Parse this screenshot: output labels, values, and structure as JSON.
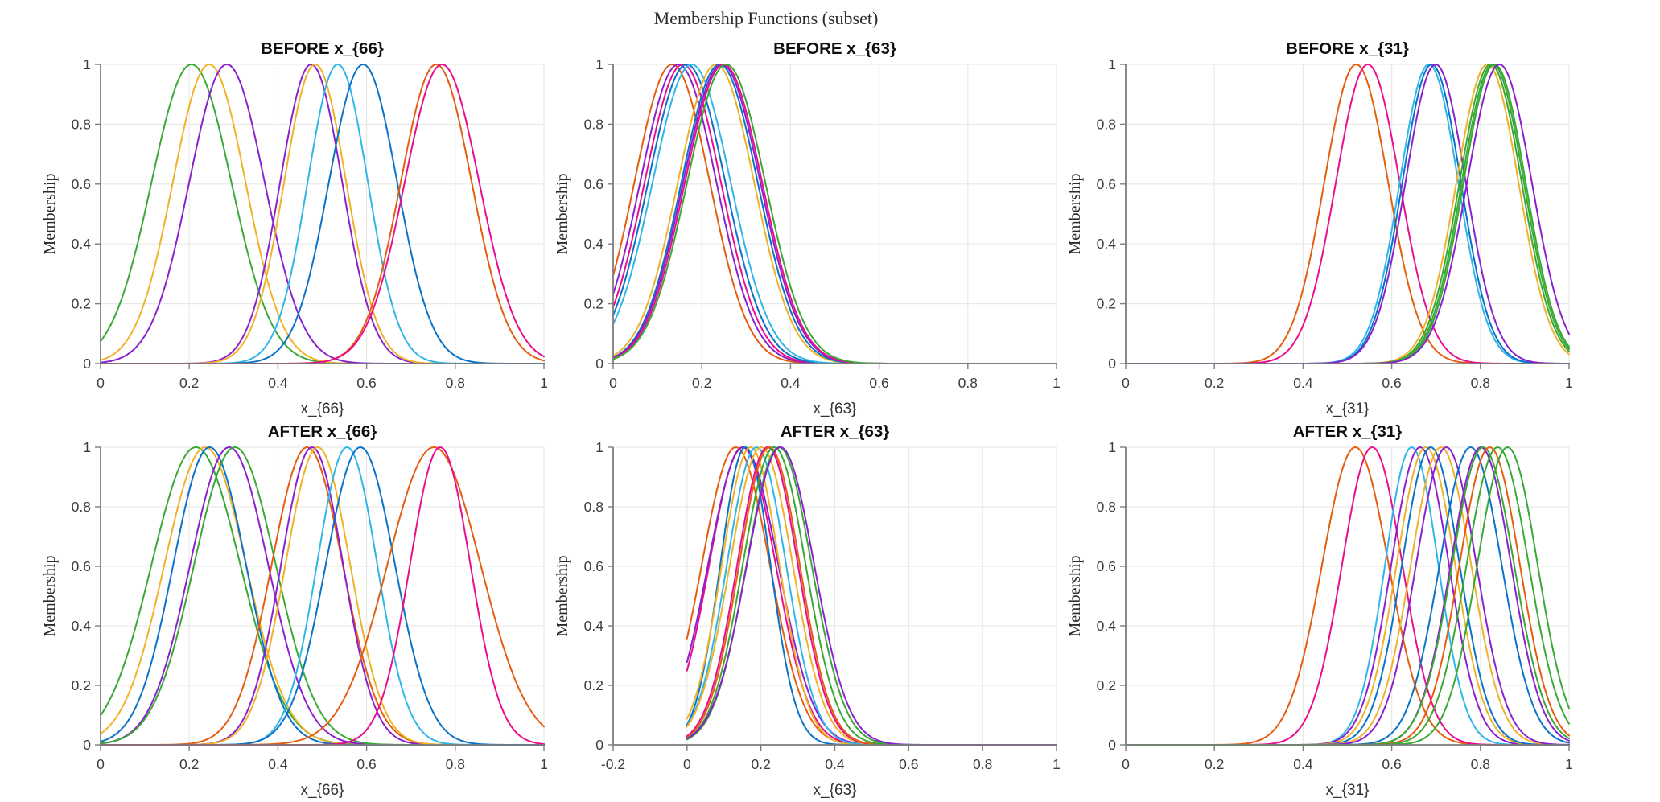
{
  "figure": {
    "suptitle": "Membership Functions (subset)",
    "background_color": "#ffffff",
    "axis_color": "#7d7d7d",
    "grid_color": "#e9e9e9",
    "tick_label_color": "#3d3d3d",
    "title_color": "#0f0f0f",
    "label_color": "#333333"
  },
  "palette": {
    "green": "#39A835",
    "amber": "#F0B228",
    "purple": "#8A21CE",
    "cyan": "#2FB6E9",
    "blue": "#0A72C8",
    "orangered": "#E55D0F",
    "magenta": "#EA0E8C"
  },
  "chart_data": [
    {
      "id": "before-x66",
      "type": "line",
      "title": "BEFORE x_{66}",
      "xlabel": "x_{66}",
      "ylabel": "Membership",
      "xlim": [
        0,
        1
      ],
      "ylim": [
        0,
        1
      ],
      "xticks": [
        0,
        0.2,
        0.4,
        0.6,
        0.8,
        1
      ],
      "xtick_labels": [
        "0",
        "0.2",
        "0.4",
        "0.6",
        "0.8",
        "1"
      ],
      "yticks": [
        0,
        0.2,
        0.4,
        0.6,
        0.8,
        1
      ],
      "ytick_labels": [
        "0",
        "0.2",
        "0.4",
        "0.6",
        "0.8",
        "1"
      ],
      "grid": true,
      "curve_model": "gaussian",
      "curve_domain": [
        0,
        1
      ],
      "series": [
        {
          "color": "green",
          "center": 0.205,
          "sigma": 0.09
        },
        {
          "color": "amber",
          "center": 0.245,
          "sigma": 0.082
        },
        {
          "color": "purple",
          "center": 0.285,
          "sigma": 0.085
        },
        {
          "color": "purple",
          "center": 0.475,
          "sigma": 0.07
        },
        {
          "color": "amber",
          "center": 0.484,
          "sigma": 0.07
        },
        {
          "color": "cyan",
          "center": 0.535,
          "sigma": 0.068
        },
        {
          "color": "blue",
          "center": 0.592,
          "sigma": 0.077
        },
        {
          "color": "orangered",
          "center": 0.757,
          "sigma": 0.08
        },
        {
          "color": "magenta",
          "center": 0.77,
          "sigma": 0.084
        }
      ]
    },
    {
      "id": "before-x63",
      "type": "line",
      "title": "BEFORE x_{63}",
      "xlabel": "x_{63}",
      "ylabel": "Membership",
      "xlim": [
        0,
        1
      ],
      "ylim": [
        0,
        1
      ],
      "xticks": [
        0,
        0.2,
        0.4,
        0.6,
        0.8,
        1
      ],
      "xtick_labels": [
        "0",
        "0.2",
        "0.4",
        "0.6",
        "0.8",
        "1"
      ],
      "yticks": [
        0,
        0.2,
        0.4,
        0.6,
        0.8,
        1
      ],
      "ytick_labels": [
        "0",
        "0.2",
        "0.4",
        "0.6",
        "0.8",
        "1"
      ],
      "grid": true,
      "curve_model": "gaussian",
      "curve_domain": [
        0,
        1
      ],
      "series": [
        {
          "color": "orangered",
          "center": 0.133,
          "sigma": 0.085
        },
        {
          "color": "purple",
          "center": 0.147,
          "sigma": 0.086
        },
        {
          "color": "magenta",
          "center": 0.157,
          "sigma": 0.086
        },
        {
          "color": "blue",
          "center": 0.166,
          "sigma": 0.087
        },
        {
          "color": "cyan",
          "center": 0.177,
          "sigma": 0.088
        },
        {
          "color": "amber",
          "center": 0.232,
          "sigma": 0.086
        },
        {
          "color": "blue",
          "center": 0.24,
          "sigma": 0.086
        },
        {
          "color": "purple",
          "center": 0.245,
          "sigma": 0.087
        },
        {
          "color": "magenta",
          "center": 0.249,
          "sigma": 0.087
        },
        {
          "color": "green",
          "center": 0.255,
          "sigma": 0.088
        }
      ]
    },
    {
      "id": "before-x31",
      "type": "line",
      "title": "BEFORE x_{31}",
      "xlabel": "x_{31}",
      "ylabel": "Membership",
      "xlim": [
        0,
        1
      ],
      "ylim": [
        0,
        1
      ],
      "xticks": [
        0,
        0.2,
        0.4,
        0.6,
        0.8,
        1
      ],
      "xtick_labels": [
        "0",
        "0.2",
        "0.4",
        "0.6",
        "0.8",
        "1"
      ],
      "yticks": [
        0,
        0.2,
        0.4,
        0.6,
        0.8,
        1
      ],
      "ytick_labels": [
        "0",
        "0.2",
        "0.4",
        "0.6",
        "0.8",
        "1"
      ],
      "grid": true,
      "curve_model": "gaussian",
      "curve_domain": [
        0,
        1
      ],
      "series": [
        {
          "color": "orangered",
          "center": 0.52,
          "sigma": 0.072
        },
        {
          "color": "magenta",
          "center": 0.546,
          "sigma": 0.072
        },
        {
          "color": "cyan",
          "center": 0.684,
          "sigma": 0.066
        },
        {
          "color": "blue",
          "center": 0.69,
          "sigma": 0.066
        },
        {
          "color": "purple",
          "center": 0.699,
          "sigma": 0.068
        },
        {
          "color": "amber",
          "center": 0.816,
          "sigma": 0.07
        },
        {
          "color": "green",
          "center": 0.823,
          "sigma": 0.07
        },
        {
          "color": "green",
          "center": 0.828,
          "sigma": 0.07
        },
        {
          "color": "green",
          "center": 0.832,
          "sigma": 0.07
        },
        {
          "color": "purple",
          "center": 0.843,
          "sigma": 0.073
        }
      ]
    },
    {
      "id": "after-x66",
      "type": "line",
      "title": "AFTER x_{66}",
      "xlabel": "x_{66}",
      "ylabel": "Membership",
      "xlim": [
        0,
        1
      ],
      "ylim": [
        0,
        1
      ],
      "xticks": [
        0,
        0.2,
        0.4,
        0.6,
        0.8,
        1
      ],
      "xtick_labels": [
        "0",
        "0.2",
        "0.4",
        "0.6",
        "0.8",
        "1"
      ],
      "yticks": [
        0,
        0.2,
        0.4,
        0.6,
        0.8,
        1
      ],
      "ytick_labels": [
        "0",
        "0.2",
        "0.4",
        "0.6",
        "0.8",
        "1"
      ],
      "grid": true,
      "curve_model": "gaussian",
      "curve_domain": [
        0,
        1
      ],
      "series": [
        {
          "color": "green",
          "center": 0.215,
          "sigma": 0.1
        },
        {
          "color": "amber",
          "center": 0.236,
          "sigma": 0.092
        },
        {
          "color": "blue",
          "center": 0.246,
          "sigma": 0.082
        },
        {
          "color": "purple",
          "center": 0.29,
          "sigma": 0.088
        },
        {
          "color": "green",
          "center": 0.303,
          "sigma": 0.092
        },
        {
          "color": "orangered",
          "center": 0.466,
          "sigma": 0.08
        },
        {
          "color": "purple",
          "center": 0.477,
          "sigma": 0.07
        },
        {
          "color": "amber",
          "center": 0.49,
          "sigma": 0.073
        },
        {
          "color": "cyan",
          "center": 0.556,
          "sigma": 0.068
        },
        {
          "color": "blue",
          "center": 0.586,
          "sigma": 0.078
        },
        {
          "color": "orangered",
          "center": 0.752,
          "sigma": 0.105
        },
        {
          "color": "magenta",
          "center": 0.766,
          "sigma": 0.068
        }
      ]
    },
    {
      "id": "after-x63",
      "type": "line",
      "title": "AFTER x_{63}",
      "xlabel": "x_{63}",
      "ylabel": "Membership",
      "xlim": [
        -0.2,
        1
      ],
      "ylim": [
        0,
        1
      ],
      "xticks": [
        -0.2,
        0,
        0.2,
        0.4,
        0.6,
        0.8,
        1
      ],
      "xtick_labels": [
        "-0.2",
        "0",
        "0.2",
        "0.4",
        "0.6",
        "0.8",
        "1"
      ],
      "yticks": [
        0,
        0.2,
        0.4,
        0.6,
        0.8,
        1
      ],
      "ytick_labels": [
        "0",
        "0.2",
        "0.4",
        "0.6",
        "0.8",
        "1"
      ],
      "grid": true,
      "curve_model": "gaussian",
      "curve_domain": [
        0,
        1
      ],
      "series": [
        {
          "color": "orangered",
          "center": 0.132,
          "sigma": 0.092
        },
        {
          "color": "magenta",
          "center": 0.15,
          "sigma": 0.09
        },
        {
          "color": "purple",
          "center": 0.152,
          "sigma": 0.095
        },
        {
          "color": "blue",
          "center": 0.158,
          "sigma": 0.068
        },
        {
          "color": "amber",
          "center": 0.172,
          "sigma": 0.078
        },
        {
          "color": "cyan",
          "center": 0.188,
          "sigma": 0.08
        },
        {
          "color": "amber",
          "center": 0.201,
          "sigma": 0.085
        },
        {
          "color": "magenta",
          "center": 0.218,
          "sigma": 0.082
        },
        {
          "color": "orangered",
          "center": 0.223,
          "sigma": 0.082
        },
        {
          "color": "green",
          "center": 0.236,
          "sigma": 0.085
        },
        {
          "color": "green",
          "center": 0.249,
          "sigma": 0.088
        },
        {
          "color": "purple",
          "center": 0.253,
          "sigma": 0.091
        }
      ]
    },
    {
      "id": "after-x31",
      "type": "line",
      "title": "AFTER x_{31}",
      "xlabel": "x_{31}",
      "ylabel": "Membership",
      "xlim": [
        0,
        1
      ],
      "ylim": [
        0,
        1
      ],
      "xticks": [
        0,
        0.2,
        0.4,
        0.6,
        0.8,
        1
      ],
      "xtick_labels": [
        "0",
        "0.2",
        "0.4",
        "0.6",
        "0.8",
        "1"
      ],
      "yticks": [
        0,
        0.2,
        0.4,
        0.6,
        0.8,
        1
      ],
      "ytick_labels": [
        "0",
        "0.2",
        "0.4",
        "0.6",
        "0.8",
        "1"
      ],
      "grid": true,
      "curve_model": "gaussian",
      "curve_domain": [
        0,
        1
      ],
      "series": [
        {
          "color": "orangered",
          "center": 0.518,
          "sigma": 0.075
        },
        {
          "color": "magenta",
          "center": 0.556,
          "sigma": 0.068
        },
        {
          "color": "cyan",
          "center": 0.645,
          "sigma": 0.06
        },
        {
          "color": "purple",
          "center": 0.664,
          "sigma": 0.065
        },
        {
          "color": "amber",
          "center": 0.677,
          "sigma": 0.066
        },
        {
          "color": "blue",
          "center": 0.688,
          "sigma": 0.065
        },
        {
          "color": "amber",
          "center": 0.711,
          "sigma": 0.068
        },
        {
          "color": "purple",
          "center": 0.723,
          "sigma": 0.068
        },
        {
          "color": "blue",
          "center": 0.778,
          "sigma": 0.07
        },
        {
          "color": "purple",
          "center": 0.801,
          "sigma": 0.068
        },
        {
          "color": "green",
          "center": 0.806,
          "sigma": 0.07
        },
        {
          "color": "orangered",
          "center": 0.821,
          "sigma": 0.068
        },
        {
          "color": "green",
          "center": 0.839,
          "sigma": 0.07
        },
        {
          "color": "green",
          "center": 0.861,
          "sigma": 0.068
        }
      ]
    }
  ]
}
